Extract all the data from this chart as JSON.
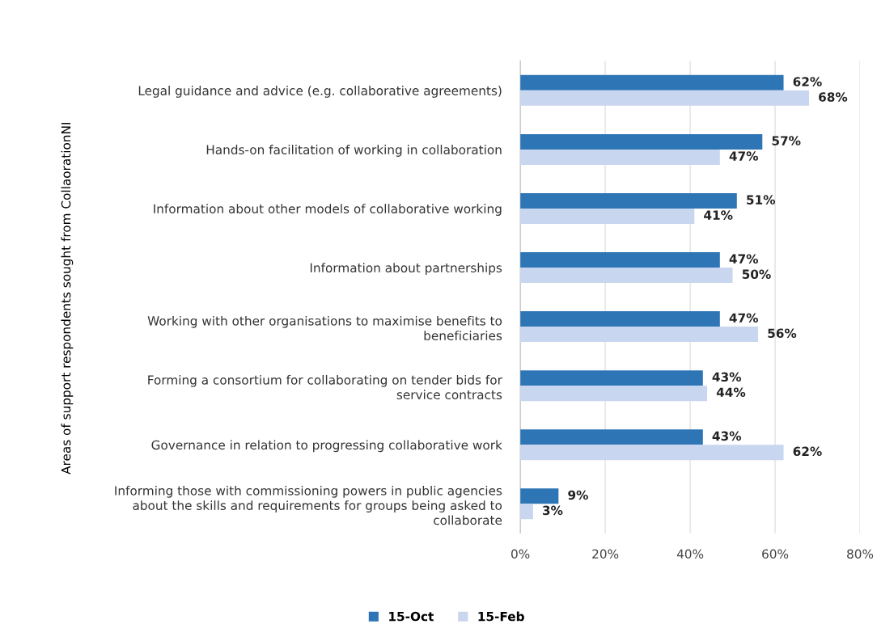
{
  "chart_data": {
    "type": "bar",
    "orientation": "horizontal",
    "ylabel": "Areas of support respondents sought from CollaorationNI",
    "categories": [
      "Legal guidance and advice (e.g. collaborative agreements)",
      "Hands-on facilitation of working in collaboration",
      "Information about other models of collaborative working",
      "Information about partnerships",
      "Working with other organisations to maximise benefits to\nbeneficiaries",
      "Forming a consortium for collaborating on tender bids for\nservice contracts",
      "Governance in relation to progressing collaborative work",
      "Informing those with commissioning powers in public agencies\nabout the skills and requirements for groups being asked to\ncollaborate"
    ],
    "series": [
      {
        "name": "15-Oct",
        "color": "#2e75b6",
        "values": [
          62,
          57,
          51,
          47,
          47,
          43,
          43,
          9
        ],
        "value_labels": [
          "62%",
          "57%",
          "51%",
          "47%",
          "47%",
          "43%",
          "43%",
          "9%"
        ]
      },
      {
        "name": "15-Feb",
        "color": "#c9d6ef",
        "values": [
          68,
          47,
          41,
          50,
          56,
          44,
          62,
          3
        ],
        "value_labels": [
          "68%",
          "47%",
          "41%",
          "50%",
          "56%",
          "44%",
          "62%",
          "3%"
        ]
      }
    ],
    "xlim": [
      0,
      80
    ],
    "xticks": [
      {
        "value": 0,
        "label": "0%"
      },
      {
        "value": 20,
        "label": "20%"
      },
      {
        "value": 40,
        "label": "40%"
      },
      {
        "value": 60,
        "label": "60%"
      },
      {
        "value": 80,
        "label": "80%"
      }
    ],
    "grid": "x",
    "legend": "bottom"
  }
}
